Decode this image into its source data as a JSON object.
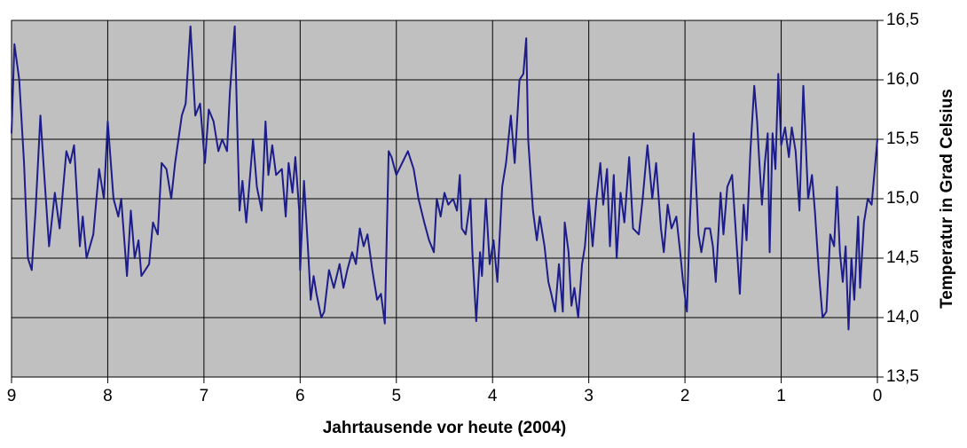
{
  "chart_data": {
    "type": "line",
    "x_label": "Jahrtausende vor heute (2004)",
    "y_label": "Temperatur in Grad Celsius",
    "xlim": [
      9,
      0
    ],
    "xticks": [
      9,
      8,
      7,
      6,
      5,
      4,
      3,
      2,
      1,
      0
    ],
    "ylim": [
      13.5,
      16.5
    ],
    "yticks": [
      {
        "value": 13.5,
        "label": "13,5"
      },
      {
        "value": 14.0,
        "label": "14,0"
      },
      {
        "value": 14.5,
        "label": "14,5"
      },
      {
        "value": 15.0,
        "label": "15,0"
      },
      {
        "value": 15.5,
        "label": "15,5"
      },
      {
        "value": 16.0,
        "label": "16,0"
      },
      {
        "value": 16.5,
        "label": "16,5"
      }
    ],
    "grid": true,
    "y_axis_side": "right",
    "background": "#c0c0c0",
    "series": [
      {
        "color": "#1c1c8a",
        "x": [
          9.0,
          8.97,
          8.92,
          8.87,
          8.83,
          8.79,
          8.75,
          8.7,
          8.66,
          8.61,
          8.55,
          8.5,
          8.43,
          8.39,
          8.35,
          8.29,
          8.26,
          8.22,
          8.15,
          8.09,
          8.04,
          8.0,
          7.94,
          7.89,
          7.86,
          7.8,
          7.76,
          7.72,
          7.68,
          7.65,
          7.57,
          7.53,
          7.48,
          7.44,
          7.39,
          7.34,
          7.3,
          7.23,
          7.19,
          7.14,
          7.09,
          7.04,
          6.99,
          6.95,
          6.9,
          6.85,
          6.81,
          6.76,
          6.73,
          6.68,
          6.65,
          6.63,
          6.6,
          6.56,
          6.49,
          6.45,
          6.4,
          6.36,
          6.33,
          6.29,
          6.25,
          6.19,
          6.15,
          6.12,
          6.08,
          6.05,
          6.01,
          6.0,
          5.96,
          5.92,
          5.89,
          5.86,
          5.83,
          5.78,
          5.75,
          5.7,
          5.65,
          5.59,
          5.55,
          5.51,
          5.46,
          5.42,
          5.38,
          5.34,
          5.3,
          5.25,
          5.2,
          5.16,
          5.12,
          5.08,
          5.05,
          5.0,
          4.94,
          4.88,
          4.82,
          4.77,
          4.71,
          4.66,
          4.61,
          4.58,
          4.54,
          4.5,
          4.46,
          4.41,
          4.37,
          4.34,
          4.32,
          4.28,
          4.23,
          4.21,
          4.17,
          4.13,
          4.11,
          4.07,
          4.03,
          3.99,
          3.95,
          3.9,
          3.86,
          3.81,
          3.77,
          3.72,
          3.68,
          3.65,
          3.63,
          3.58,
          3.54,
          3.51,
          3.46,
          3.42,
          3.39,
          3.35,
          3.31,
          3.27,
          3.25,
          3.21,
          3.18,
          3.15,
          3.11,
          3.07,
          3.04,
          3.0,
          2.96,
          2.92,
          2.88,
          2.85,
          2.81,
          2.78,
          2.74,
          2.71,
          2.67,
          2.63,
          2.58,
          2.54,
          2.48,
          2.44,
          2.39,
          2.34,
          2.3,
          2.25,
          2.22,
          2.18,
          2.14,
          2.09,
          2.05,
          2.02,
          1.98,
          1.95,
          1.91,
          1.86,
          1.83,
          1.79,
          1.74,
          1.71,
          1.68,
          1.63,
          1.6,
          1.56,
          1.51,
          1.47,
          1.43,
          1.39,
          1.36,
          1.32,
          1.28,
          1.25,
          1.23,
          1.2,
          1.17,
          1.14,
          1.12,
          1.09,
          1.06,
          1.03,
          1.0,
          0.96,
          0.92,
          0.89,
          0.85,
          0.81,
          0.77,
          0.72,
          0.68,
          0.65,
          0.61,
          0.57,
          0.53,
          0.49,
          0.45,
          0.42,
          0.39,
          0.36,
          0.33,
          0.3,
          0.27,
          0.24,
          0.2,
          0.18,
          0.14,
          0.1,
          0.06,
          0.0
        ],
        "values": [
          15.55,
          16.3,
          16.0,
          15.3,
          14.5,
          14.4,
          14.9,
          15.7,
          15.2,
          14.6,
          15.05,
          14.75,
          15.4,
          15.3,
          15.45,
          14.6,
          14.85,
          14.5,
          14.7,
          15.25,
          15.0,
          15.65,
          15.0,
          14.85,
          15.0,
          14.35,
          14.9,
          14.5,
          14.65,
          14.35,
          14.45,
          14.8,
          14.7,
          15.3,
          15.25,
          15.0,
          15.3,
          15.7,
          15.8,
          16.45,
          15.7,
          15.8,
          15.3,
          15.75,
          15.65,
          15.4,
          15.5,
          15.4,
          15.9,
          16.45,
          15.5,
          14.9,
          15.15,
          14.8,
          15.5,
          15.1,
          14.9,
          15.65,
          15.2,
          15.45,
          15.2,
          15.25,
          14.85,
          15.3,
          15.05,
          15.35,
          14.9,
          14.4,
          15.15,
          14.6,
          14.15,
          14.35,
          14.2,
          14.0,
          14.05,
          14.4,
          14.25,
          14.45,
          14.25,
          14.4,
          14.55,
          14.45,
          14.75,
          14.6,
          14.7,
          14.4,
          14.15,
          14.2,
          13.95,
          15.4,
          15.35,
          15.2,
          15.3,
          15.4,
          15.25,
          15.0,
          14.8,
          14.65,
          14.55,
          15.0,
          14.85,
          15.05,
          14.95,
          15.0,
          14.9,
          15.2,
          14.75,
          14.7,
          15.0,
          14.55,
          13.97,
          14.55,
          14.35,
          15.0,
          14.45,
          14.65,
          14.3,
          15.1,
          15.3,
          15.7,
          15.3,
          16.0,
          16.05,
          16.35,
          15.5,
          14.9,
          14.65,
          14.85,
          14.6,
          14.3,
          14.2,
          14.05,
          14.45,
          14.05,
          14.8,
          14.55,
          14.1,
          14.25,
          14.0,
          14.45,
          14.6,
          15.0,
          14.6,
          15.0,
          15.3,
          14.95,
          15.25,
          14.6,
          15.2,
          14.5,
          15.05,
          14.8,
          15.35,
          14.75,
          14.7,
          15.0,
          15.45,
          15.0,
          15.3,
          14.75,
          14.55,
          14.95,
          14.75,
          14.85,
          14.55,
          14.3,
          14.05,
          14.8,
          15.55,
          14.7,
          14.55,
          14.75,
          14.75,
          14.6,
          14.3,
          15.05,
          14.7,
          15.1,
          15.2,
          14.7,
          14.2,
          14.95,
          14.65,
          15.4,
          15.95,
          15.65,
          15.35,
          14.95,
          15.3,
          15.55,
          14.55,
          15.55,
          15.25,
          16.05,
          15.45,
          15.6,
          15.35,
          15.6,
          15.4,
          14.9,
          15.95,
          15.0,
          15.2,
          14.9,
          14.4,
          14.0,
          14.05,
          14.7,
          14.6,
          15.1,
          14.55,
          14.3,
          14.6,
          13.9,
          14.5,
          14.15,
          14.85,
          14.25,
          14.8,
          15.0,
          14.95,
          15.5
        ]
      }
    ]
  }
}
